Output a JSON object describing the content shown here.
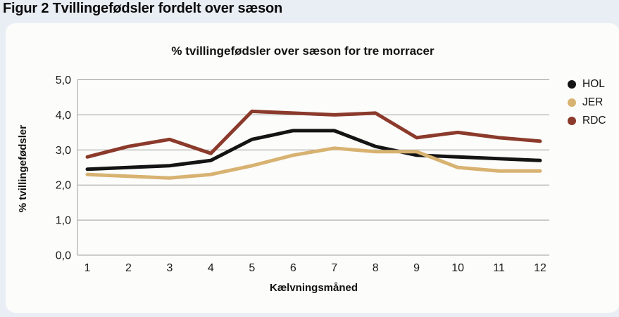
{
  "page": {
    "heading": "Figur 2 Tvillingefødsler fordelt over sæson",
    "background_color": "#e9eef4",
    "card_color": "#fcfcfa"
  },
  "chart_data": {
    "type": "line",
    "title": "% tvillingefødsler over sæson for tre morracer",
    "xlabel": "Kælvningsmåned",
    "ylabel": "% tvillingefødsler",
    "x": [
      1,
      2,
      3,
      4,
      5,
      6,
      7,
      8,
      9,
      10,
      11,
      12
    ],
    "x_tick_labels": [
      "1",
      "2",
      "3",
      "4",
      "5",
      "6",
      "7",
      "8",
      "9",
      "10",
      "11",
      "12"
    ],
    "ylim": [
      0,
      5
    ],
    "y_ticks": [
      0,
      1,
      2,
      3,
      4,
      5
    ],
    "y_tick_labels": [
      "0,0",
      "1,0",
      "2,0",
      "3,0",
      "4,0",
      "5,0"
    ],
    "grid": true,
    "grid_color": "#9e9e9e",
    "legend_position": "right",
    "series": [
      {
        "name": "HOL",
        "color": "#141414",
        "values": [
          2.45,
          2.5,
          2.55,
          2.7,
          3.3,
          3.55,
          3.55,
          3.1,
          2.85,
          2.8,
          2.75,
          2.7
        ]
      },
      {
        "name": "JER",
        "color": "#d8b271",
        "values": [
          2.3,
          2.25,
          2.2,
          2.3,
          2.55,
          2.85,
          3.05,
          2.95,
          2.95,
          2.5,
          2.4,
          2.4
        ]
      },
      {
        "name": "RDC",
        "color": "#8b3a2b",
        "values": [
          2.8,
          3.1,
          3.3,
          2.9,
          4.1,
          4.05,
          4.0,
          4.05,
          3.35,
          3.5,
          3.35,
          3.25
        ]
      }
    ]
  }
}
